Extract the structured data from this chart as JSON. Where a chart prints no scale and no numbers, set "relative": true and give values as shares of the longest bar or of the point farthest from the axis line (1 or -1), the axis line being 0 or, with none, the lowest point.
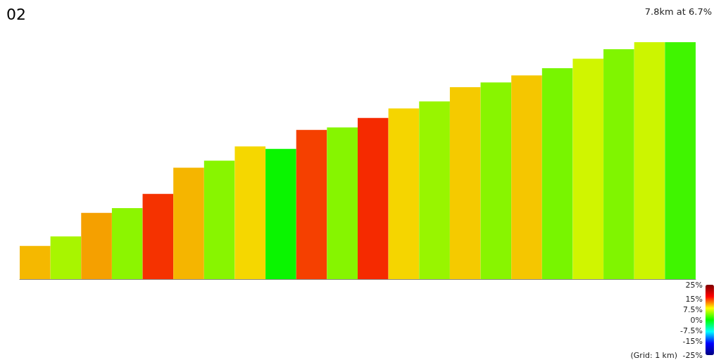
{
  "chart_data": {
    "type": "bar",
    "title": "02",
    "subtitle": "7.8km at 6.7%",
    "categories": [
      null,
      null,
      null,
      null,
      null,
      null,
      null,
      null,
      null,
      null,
      null,
      null,
      null,
      null,
      null,
      null,
      null,
      null,
      null,
      null,
      null,
      null
    ],
    "values": [
      0.14,
      0.18,
      0.28,
      0.3,
      0.36,
      0.47,
      0.5,
      0.56,
      0.55,
      0.63,
      0.64,
      0.68,
      0.72,
      0.75,
      0.81,
      0.83,
      0.86,
      0.89,
      0.93,
      0.97,
      1.0,
      1.0
    ],
    "colors": [
      "#f5b800",
      "#a8f500",
      "#f5a000",
      "#8cf500",
      "#f53200",
      "#f5b500",
      "#88f500",
      "#f5d700",
      "#0af500",
      "#f54000",
      "#86f500",
      "#f52a00",
      "#f5d500",
      "#98f500",
      "#f5ca00",
      "#88f500",
      "#f5c600",
      "#78f500",
      "#d0f500",
      "#80f500",
      "#ccf500",
      "#40f500"
    ],
    "relative": true,
    "clim": [
      -25,
      25
    ],
    "cticks": [
      {
        "value": 25,
        "label": "25%"
      },
      {
        "value": 15,
        "label": "15%"
      },
      {
        "value": 7.5,
        "label": "7.5%"
      },
      {
        "value": 0,
        "label": "0%"
      },
      {
        "value": -7.5,
        "label": "-7.5%"
      },
      {
        "value": -15,
        "label": "-15%"
      },
      {
        "value": -25,
        "label": "-25%"
      }
    ],
    "annotations": [
      "(Grid: 1 km)"
    ]
  }
}
